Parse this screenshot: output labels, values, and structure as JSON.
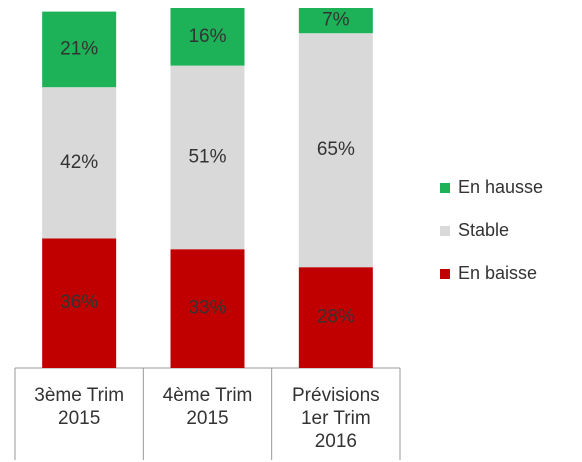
{
  "chart_data": {
    "type": "stacked_bar",
    "categories": [
      "3ème Trim\n2015",
      "4ème Trim\n2015",
      "Prévisions\n1er  Trim\n2016"
    ],
    "series": [
      {
        "name": "En baisse",
        "color": "#c00000",
        "values": [
          36,
          33,
          28
        ],
        "value_labels": [
          "36%",
          "33%",
          "28%"
        ]
      },
      {
        "name": "Stable",
        "color": "#d9d9d9",
        "values": [
          42,
          51,
          65
        ],
        "value_labels": [
          "42%",
          "51%",
          "65%"
        ]
      },
      {
        "name": "En hausse",
        "color": "#1db257",
        "values": [
          21,
          16,
          7
        ],
        "value_labels": [
          "21%",
          "16%",
          "7%"
        ]
      }
    ],
    "ylim": [
      0,
      100
    ],
    "legend": "right"
  }
}
